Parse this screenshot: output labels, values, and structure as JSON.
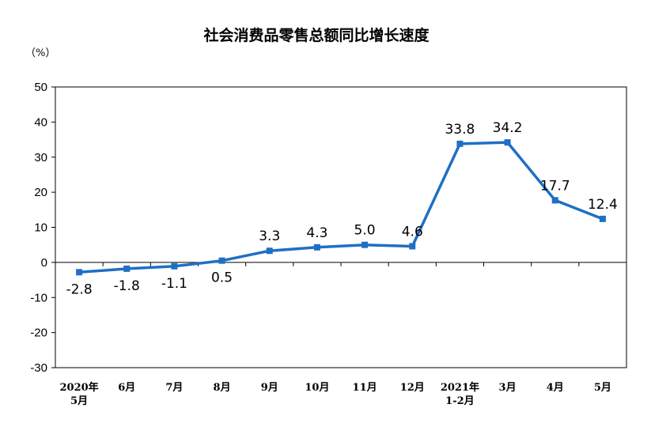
{
  "chart_data": {
    "type": "line",
    "title": "社会消费品零售总额同比增长速度",
    "unit_label": "（%）",
    "categories": [
      [
        "2020年",
        "5月"
      ],
      [
        "6月"
      ],
      [
        "7月"
      ],
      [
        "8月"
      ],
      [
        "9月"
      ],
      [
        "10月"
      ],
      [
        "11月"
      ],
      [
        "12月"
      ],
      [
        "2021年",
        "1-2月"
      ],
      [
        "3月"
      ],
      [
        "4月"
      ],
      [
        "5月"
      ]
    ],
    "values": [
      -2.8,
      -1.8,
      -1.1,
      0.5,
      3.3,
      4.3,
      5.0,
      4.6,
      33.8,
      34.2,
      17.7,
      12.4
    ],
    "data_labels": [
      "-2.8",
      "-1.8",
      "-1.1",
      "0.5",
      "3.3",
      "4.3",
      "5.0",
      "4.6",
      "33.8",
      "34.2",
      "17.7",
      "12.4"
    ],
    "yticks": [
      50,
      40,
      30,
      20,
      10,
      0,
      -10,
      -20,
      -30
    ],
    "ylim": [
      -30,
      50
    ],
    "grid": false,
    "legend": "none",
    "line_color": "#1f6fc5"
  }
}
